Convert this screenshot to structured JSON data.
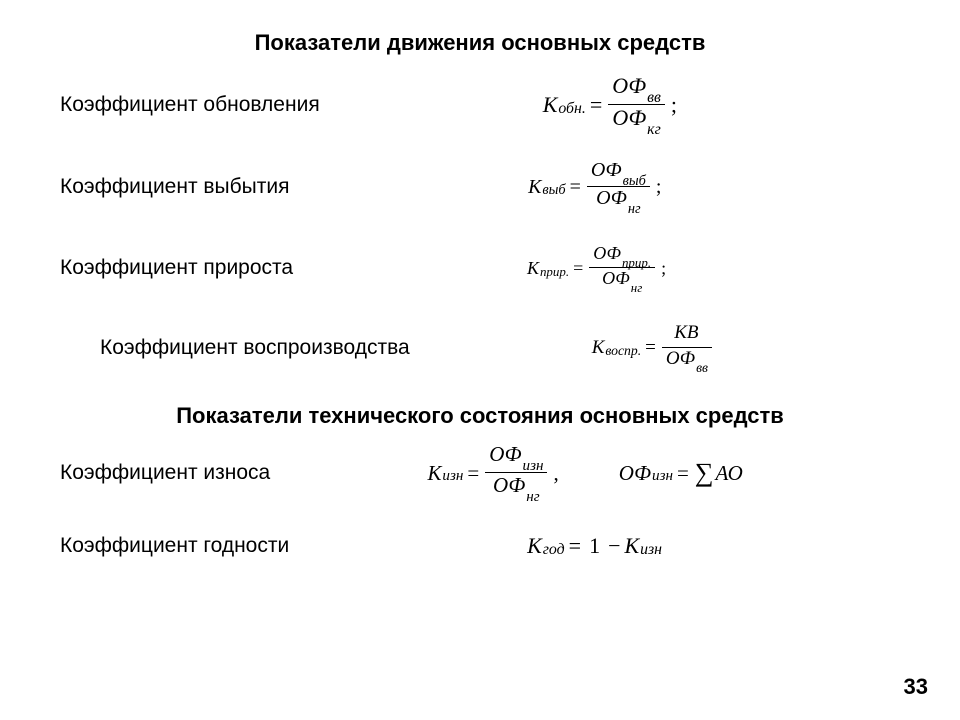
{
  "page_number": "33",
  "heading1": "Показатели движения основных средств",
  "heading2": "Показатели технического состояния основных средств",
  "rows": {
    "r1": {
      "label": "Коэффициент обновления",
      "fs": 22,
      "K_sub": "обн.",
      "num_main": "ОФ",
      "num_sub": "вв",
      "den_main": "ОФ",
      "den_sub": "кг",
      "punct": ";"
    },
    "r2": {
      "label": "Коэффициент выбытия",
      "fs": 20,
      "K_sub": "выб",
      "num_main": "ОФ",
      "num_sub": "выб",
      "den_main": "ОФ",
      "den_sub": "нг",
      "punct": ";"
    },
    "r3": {
      "label": "Коэффициент прироста",
      "fs": 18,
      "K_sub": "прир.",
      "num_main": "ОФ",
      "num_sub": "прир.",
      "den_main": "ОФ",
      "den_sub": "нг",
      "punct": ";"
    },
    "r4": {
      "label": "Коэффициент воспроизводства",
      "fs": 19,
      "K_sub": "воспр.",
      "num_main": "КВ",
      "num_sub": "",
      "den_main": "ОФ",
      "den_sub": "вв",
      "punct": ""
    },
    "r5": {
      "label": "Коэффициент износа",
      "fs": 21,
      "K_sub": "изн",
      "num_main": "ОФ",
      "num_sub": "изн",
      "den_main": "ОФ",
      "den_sub": "нг",
      "punct": ",",
      "extra_lhs_main": "ОФ",
      "extra_lhs_sub": "изн",
      "extra_rhs": "АО"
    },
    "r6": {
      "label": "Коэффициент годности",
      "fs": 22,
      "lhs_main": "К",
      "lhs_sub": "год",
      "one": "1",
      "rhs_main": "К",
      "rhs_sub": "изн"
    }
  },
  "sym": {
    "K": "К",
    "eq": "=",
    "minus": "−",
    "sum": "∑"
  }
}
